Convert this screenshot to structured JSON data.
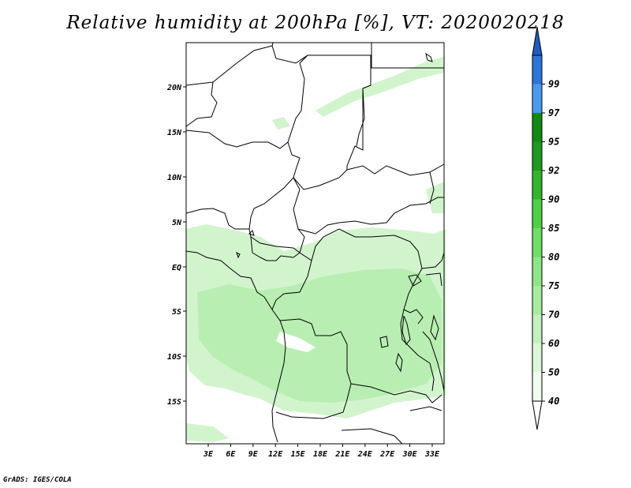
{
  "title": "Relative humidity at 200hPa [%], VT: 2020020218",
  "credit": "GrADS: IGES/COLA",
  "map": {
    "lat_ticks": [
      "20N",
      "15N",
      "10N",
      "5N",
      "EQ",
      "5S",
      "10S",
      "15S"
    ],
    "lon_ticks": [
      "3E",
      "6E",
      "9E",
      "12E",
      "15E",
      "18E",
      "21E",
      "24E",
      "27E",
      "30E",
      "33E"
    ]
  },
  "colorbar": {
    "levels": [
      {
        "label": "40",
        "color": "#f0fcef"
      },
      {
        "label": "50",
        "color": "#dcf7d8"
      },
      {
        "label": "60",
        "color": "#c2f1bd"
      },
      {
        "label": "70",
        "color": "#a7eb9f"
      },
      {
        "label": "75",
        "color": "#8ee585"
      },
      {
        "label": "80",
        "color": "#6ede64"
      },
      {
        "label": "85",
        "color": "#4ed146"
      },
      {
        "label": "90",
        "color": "#32b52c"
      },
      {
        "label": "92",
        "color": "#1e9b1e"
      },
      {
        "label": "95",
        "color": "#118a11"
      },
      {
        "label": "97",
        "color": "#4a9bf0"
      },
      {
        "label": "99",
        "color": "#2c76d8"
      }
    ],
    "top_color": "#1f5cc2",
    "bottom_color": "#ffffff"
  },
  "fill_colors": {
    "light": "#d2f4cd",
    "mid": "#b8eeb2"
  }
}
